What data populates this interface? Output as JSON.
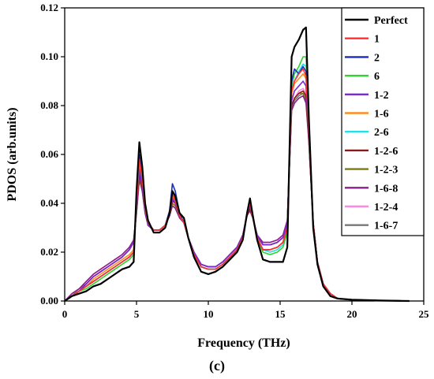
{
  "chart_data": {
    "type": "line",
    "xlabel": "Frequency (THz)",
    "ylabel": "PDOS (arb.units)",
    "caption": "(c)",
    "xlim": [
      0,
      25
    ],
    "ylim": [
      0,
      0.12
    ],
    "xticks": [
      0,
      5,
      10,
      15,
      20,
      25
    ],
    "yticks": [
      0.0,
      0.02,
      0.04,
      0.06,
      0.08,
      0.1,
      0.12
    ],
    "ytick_labels": [
      "0.00",
      "0.02",
      "0.04",
      "0.06",
      "0.08",
      "0.10",
      "0.12"
    ],
    "legend_position": "top-right",
    "x": [
      0,
      0.5,
      1,
      1.5,
      2,
      2.5,
      3,
      3.5,
      4,
      4.5,
      4.8,
      5.0,
      5.2,
      5.4,
      5.6,
      5.8,
      6.2,
      6.6,
      7.0,
      7.3,
      7.5,
      7.7,
      8.0,
      8.3,
      8.6,
      9.0,
      9.5,
      10.0,
      10.5,
      11.0,
      11.5,
      12.0,
      12.4,
      12.7,
      12.9,
      13.1,
      13.4,
      13.8,
      14.3,
      14.8,
      15.2,
      15.5,
      15.8,
      16.0,
      16.3,
      16.6,
      16.8,
      17.0,
      17.3,
      17.6,
      18.0,
      18.5,
      19.0,
      20.0,
      22.0,
      24.0
    ],
    "series": [
      {
        "name": "Perfect",
        "color": "#000000",
        "values": [
          0,
          0.002,
          0.003,
          0.004,
          0.006,
          0.007,
          0.009,
          0.011,
          0.013,
          0.014,
          0.016,
          0.045,
          0.065,
          0.055,
          0.04,
          0.033,
          0.028,
          0.028,
          0.03,
          0.036,
          0.045,
          0.043,
          0.036,
          0.034,
          0.026,
          0.018,
          0.012,
          0.011,
          0.012,
          0.014,
          0.017,
          0.02,
          0.025,
          0.036,
          0.042,
          0.035,
          0.025,
          0.017,
          0.016,
          0.016,
          0.016,
          0.022,
          0.1,
          0.104,
          0.107,
          0.111,
          0.112,
          0.075,
          0.03,
          0.015,
          0.006,
          0.002,
          0.001,
          0.0005,
          0.0002,
          0
        ]
      },
      {
        "name": "1",
        "color": "#ff3030",
        "values": [
          0,
          0.002,
          0.004,
          0.006,
          0.008,
          0.01,
          0.012,
          0.014,
          0.016,
          0.018,
          0.02,
          0.04,
          0.058,
          0.05,
          0.038,
          0.032,
          0.029,
          0.029,
          0.031,
          0.036,
          0.044,
          0.041,
          0.035,
          0.032,
          0.026,
          0.019,
          0.014,
          0.013,
          0.013,
          0.015,
          0.018,
          0.021,
          0.026,
          0.036,
          0.04,
          0.034,
          0.026,
          0.021,
          0.021,
          0.022,
          0.024,
          0.03,
          0.086,
          0.09,
          0.093,
          0.095,
          0.092,
          0.07,
          0.032,
          0.016,
          0.007,
          0.003,
          0.001,
          0.0005,
          0.0002,
          0
        ]
      },
      {
        "name": "2",
        "color": "#1a2db5",
        "values": [
          0,
          0.002,
          0.004,
          0.006,
          0.008,
          0.01,
          0.012,
          0.014,
          0.016,
          0.018,
          0.02,
          0.042,
          0.06,
          0.052,
          0.038,
          0.032,
          0.029,
          0.029,
          0.031,
          0.037,
          0.048,
          0.045,
          0.036,
          0.032,
          0.026,
          0.019,
          0.014,
          0.013,
          0.013,
          0.015,
          0.018,
          0.021,
          0.026,
          0.036,
          0.041,
          0.034,
          0.026,
          0.021,
          0.021,
          0.022,
          0.024,
          0.03,
          0.09,
          0.095,
          0.093,
          0.096,
          0.094,
          0.07,
          0.032,
          0.016,
          0.007,
          0.003,
          0.001,
          0.0005,
          0.0002,
          0
        ]
      },
      {
        "name": "6",
        "color": "#2fd22f",
        "values": [
          0,
          0.002,
          0.004,
          0.005,
          0.007,
          0.009,
          0.011,
          0.013,
          0.015,
          0.017,
          0.019,
          0.042,
          0.057,
          0.05,
          0.038,
          0.032,
          0.029,
          0.029,
          0.031,
          0.036,
          0.044,
          0.042,
          0.035,
          0.032,
          0.026,
          0.019,
          0.014,
          0.013,
          0.013,
          0.015,
          0.018,
          0.021,
          0.026,
          0.036,
          0.041,
          0.034,
          0.026,
          0.02,
          0.019,
          0.02,
          0.022,
          0.028,
          0.088,
          0.093,
          0.096,
          0.1,
          0.1,
          0.072,
          0.032,
          0.016,
          0.007,
          0.003,
          0.001,
          0.0005,
          0.0002,
          0
        ]
      },
      {
        "name": "1-2",
        "color": "#7a2ad6",
        "values": [
          0,
          0.002,
          0.004,
          0.007,
          0.01,
          0.012,
          0.014,
          0.016,
          0.018,
          0.021,
          0.024,
          0.038,
          0.054,
          0.047,
          0.037,
          0.031,
          0.029,
          0.029,
          0.031,
          0.036,
          0.042,
          0.04,
          0.035,
          0.032,
          0.026,
          0.02,
          0.015,
          0.014,
          0.014,
          0.016,
          0.019,
          0.022,
          0.027,
          0.036,
          0.039,
          0.034,
          0.027,
          0.023,
          0.023,
          0.024,
          0.026,
          0.032,
          0.082,
          0.086,
          0.088,
          0.09,
          0.088,
          0.068,
          0.032,
          0.016,
          0.007,
          0.003,
          0.001,
          0.0005,
          0.0002,
          0
        ]
      },
      {
        "name": "1-6",
        "color": "#ff8c1a",
        "values": [
          0,
          0.002,
          0.004,
          0.006,
          0.009,
          0.011,
          0.013,
          0.015,
          0.017,
          0.019,
          0.021,
          0.04,
          0.056,
          0.049,
          0.038,
          0.032,
          0.029,
          0.029,
          0.031,
          0.036,
          0.043,
          0.041,
          0.035,
          0.032,
          0.026,
          0.019,
          0.014,
          0.013,
          0.013,
          0.015,
          0.018,
          0.021,
          0.026,
          0.036,
          0.04,
          0.034,
          0.026,
          0.021,
          0.021,
          0.022,
          0.024,
          0.03,
          0.085,
          0.089,
          0.091,
          0.093,
          0.091,
          0.07,
          0.032,
          0.016,
          0.007,
          0.003,
          0.001,
          0.0005,
          0.0002,
          0
        ]
      },
      {
        "name": "2-6",
        "color": "#22e0e8",
        "values": [
          0,
          0.002,
          0.004,
          0.006,
          0.008,
          0.01,
          0.012,
          0.014,
          0.016,
          0.018,
          0.02,
          0.041,
          0.057,
          0.05,
          0.038,
          0.032,
          0.029,
          0.029,
          0.031,
          0.036,
          0.044,
          0.042,
          0.035,
          0.032,
          0.026,
          0.019,
          0.014,
          0.013,
          0.013,
          0.015,
          0.018,
          0.021,
          0.026,
          0.036,
          0.04,
          0.034,
          0.026,
          0.021,
          0.02,
          0.021,
          0.023,
          0.029,
          0.086,
          0.09,
          0.094,
          0.097,
          0.096,
          0.071,
          0.032,
          0.016,
          0.007,
          0.003,
          0.001,
          0.0005,
          0.0002,
          0
        ]
      },
      {
        "name": "1-2-6",
        "color": "#8b1a1a",
        "values": [
          0,
          0.002,
          0.004,
          0.007,
          0.01,
          0.012,
          0.014,
          0.016,
          0.018,
          0.021,
          0.024,
          0.038,
          0.052,
          0.046,
          0.037,
          0.031,
          0.029,
          0.029,
          0.031,
          0.035,
          0.041,
          0.04,
          0.035,
          0.032,
          0.026,
          0.02,
          0.015,
          0.014,
          0.014,
          0.016,
          0.019,
          0.022,
          0.027,
          0.035,
          0.038,
          0.034,
          0.027,
          0.023,
          0.023,
          0.024,
          0.026,
          0.032,
          0.08,
          0.083,
          0.085,
          0.086,
          0.084,
          0.066,
          0.032,
          0.016,
          0.007,
          0.003,
          0.001,
          0.0005,
          0.0002,
          0
        ]
      },
      {
        "name": "1-2-3",
        "color": "#7c7a10",
        "values": [
          0,
          0.002,
          0.004,
          0.007,
          0.01,
          0.012,
          0.014,
          0.016,
          0.018,
          0.021,
          0.024,
          0.037,
          0.051,
          0.046,
          0.037,
          0.031,
          0.029,
          0.029,
          0.031,
          0.035,
          0.04,
          0.039,
          0.035,
          0.032,
          0.026,
          0.02,
          0.015,
          0.014,
          0.014,
          0.016,
          0.019,
          0.022,
          0.027,
          0.035,
          0.038,
          0.034,
          0.027,
          0.023,
          0.023,
          0.024,
          0.026,
          0.032,
          0.08,
          0.083,
          0.085,
          0.085,
          0.083,
          0.066,
          0.032,
          0.016,
          0.007,
          0.003,
          0.001,
          0.0005,
          0.0002,
          0
        ]
      },
      {
        "name": "1-6-8",
        "color": "#8a1f8a",
        "values": [
          0,
          0.003,
          0.005,
          0.008,
          0.011,
          0.013,
          0.015,
          0.017,
          0.019,
          0.022,
          0.025,
          0.036,
          0.05,
          0.045,
          0.036,
          0.031,
          0.029,
          0.029,
          0.031,
          0.035,
          0.039,
          0.038,
          0.034,
          0.032,
          0.026,
          0.02,
          0.015,
          0.014,
          0.014,
          0.016,
          0.019,
          0.022,
          0.027,
          0.035,
          0.037,
          0.034,
          0.027,
          0.024,
          0.024,
          0.025,
          0.027,
          0.033,
          0.078,
          0.081,
          0.083,
          0.084,
          0.081,
          0.065,
          0.032,
          0.016,
          0.007,
          0.003,
          0.001,
          0.0005,
          0.0002,
          0
        ]
      },
      {
        "name": "1-2-4",
        "color": "#ff88e0",
        "values": [
          0,
          0.003,
          0.005,
          0.008,
          0.011,
          0.013,
          0.015,
          0.017,
          0.019,
          0.022,
          0.025,
          0.037,
          0.052,
          0.046,
          0.037,
          0.031,
          0.029,
          0.029,
          0.031,
          0.035,
          0.04,
          0.039,
          0.035,
          0.032,
          0.026,
          0.02,
          0.015,
          0.014,
          0.014,
          0.016,
          0.019,
          0.022,
          0.027,
          0.035,
          0.038,
          0.034,
          0.027,
          0.024,
          0.024,
          0.025,
          0.027,
          0.033,
          0.08,
          0.083,
          0.086,
          0.087,
          0.085,
          0.067,
          0.032,
          0.016,
          0.007,
          0.003,
          0.001,
          0.0005,
          0.0002,
          0
        ]
      },
      {
        "name": "1-6-7",
        "color": "#777777",
        "values": [
          0,
          0.002,
          0.005,
          0.007,
          0.01,
          0.012,
          0.014,
          0.016,
          0.018,
          0.021,
          0.024,
          0.036,
          0.05,
          0.045,
          0.036,
          0.031,
          0.029,
          0.029,
          0.031,
          0.035,
          0.039,
          0.038,
          0.034,
          0.032,
          0.026,
          0.02,
          0.015,
          0.014,
          0.014,
          0.016,
          0.019,
          0.022,
          0.027,
          0.035,
          0.037,
          0.034,
          0.027,
          0.023,
          0.023,
          0.024,
          0.026,
          0.032,
          0.079,
          0.082,
          0.084,
          0.085,
          0.082,
          0.066,
          0.032,
          0.016,
          0.007,
          0.003,
          0.001,
          0.0005,
          0.0002,
          0
        ]
      }
    ]
  }
}
